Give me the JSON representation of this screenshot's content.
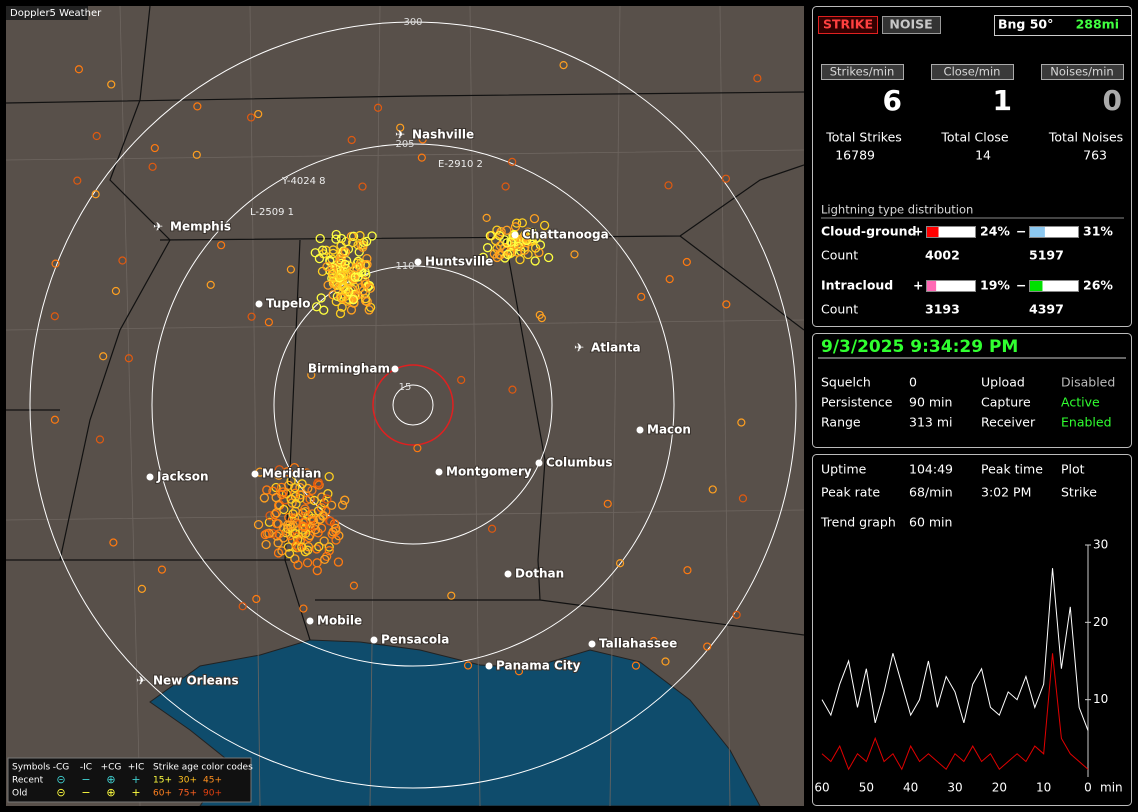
{
  "app_title": "Doppler5 Weather",
  "map": {
    "range_rings": [
      300,
      205,
      110,
      15
    ],
    "cities": [
      "Nashville",
      "Chattanooga",
      "Memphis",
      "Huntsville",
      "Tupelo",
      "Atlanta",
      "Birmingham",
      "Macon",
      "Meridian",
      "Jackson",
      "Montgomery",
      "Columbus",
      "Dothan",
      "Mobile",
      "Pensacola",
      "Tallahassee",
      "Panama City",
      "New Orleans"
    ],
    "stations": [
      "Y-4024 8",
      "L-2509 1",
      "E-2910 2"
    ],
    "legend": {
      "symbols_label": "Symbols",
      "columns": [
        "-CG",
        "-IC",
        "+CG",
        "+IC"
      ],
      "age_label": "Strike age color codes",
      "rows": [
        {
          "label": "Recent",
          "ages": [
            "15+",
            "30+",
            "45+"
          ]
        },
        {
          "label": "Old",
          "ages": [
            "60+",
            "75+",
            "90+"
          ]
        }
      ]
    }
  },
  "status": {
    "strike_button": "STRIKE",
    "noise_button": "NOISE",
    "bearing": "Bng 50°",
    "distance": "288mi"
  },
  "rates": [
    {
      "label": "Strikes/min",
      "value": 6
    },
    {
      "label": "Close/min",
      "value": 1
    },
    {
      "label": "Noises/min",
      "value": 0
    }
  ],
  "totals": [
    {
      "label": "Total Strikes",
      "value": 16789
    },
    {
      "label": "Total Close",
      "value": 14
    },
    {
      "label": "Total Noises",
      "value": 763
    }
  ],
  "distribution": {
    "title": "Lightning type distribution",
    "count_label": "Count",
    "rows": [
      {
        "label": "Cloud-ground",
        "pos": {
          "sign": "+",
          "percent": {
            "value": 24,
            "label": "24%"
          },
          "count": 4002,
          "color": "#ff0000"
        },
        "neg": {
          "sign": "−",
          "percent": {
            "value": 31,
            "label": "31%"
          },
          "count": 5197,
          "color": "#8cc8f0"
        }
      },
      {
        "label": "Intracloud",
        "pos": {
          "sign": "+",
          "percent": {
            "value": 19,
            "label": "19%"
          },
          "count": 3193,
          "color": "#ff69b4"
        },
        "neg": {
          "sign": "−",
          "percent": {
            "value": 26,
            "label": "26%"
          },
          "count": 4397,
          "color": "#00e000"
        }
      }
    ]
  },
  "clock": "9/3/2025 9:34:29 PM",
  "settings": [
    [
      "Squelch",
      "0",
      "Upload",
      "Disabled"
    ],
    [
      "Persistence",
      "90 min",
      "Capture",
      "Active"
    ],
    [
      "Range",
      "313 mi",
      "Receiver",
      "Enabled"
    ]
  ],
  "stats": [
    [
      "Uptime",
      "104:49",
      "Peak time",
      "Plot"
    ],
    [
      "Peak rate",
      "68/min",
      "3:02 PM",
      "Strike"
    ],
    [
      "Trend graph",
      "60 min"
    ]
  ],
  "chart_data": {
    "type": "line",
    "xlabel": "min",
    "x": [
      60,
      58,
      56,
      54,
      52,
      50,
      48,
      46,
      44,
      42,
      40,
      38,
      36,
      34,
      32,
      30,
      28,
      26,
      24,
      22,
      20,
      18,
      16,
      14,
      12,
      10,
      8,
      6,
      4,
      2,
      0
    ],
    "series": [
      {
        "color": "#ffffff",
        "values": [
          10,
          8,
          12,
          15,
          9,
          14,
          7,
          11,
          16,
          12,
          8,
          10,
          15,
          9,
          13,
          11,
          7,
          12,
          14,
          9,
          8,
          11,
          10,
          13,
          9,
          12,
          27,
          14,
          22,
          9,
          6
        ]
      },
      {
        "color": "#e00000",
        "values": [
          3,
          2,
          4,
          1,
          3,
          2,
          5,
          2,
          3,
          1,
          4,
          2,
          3,
          2,
          1,
          3,
          2,
          4,
          2,
          3,
          1,
          2,
          3,
          2,
          4,
          3,
          16,
          5,
          3,
          2,
          1
        ]
      }
    ],
    "xlim": [
      60,
      0
    ],
    "ylim": [
      0,
      30
    ],
    "xticks": [
      60,
      50,
      40,
      30,
      20,
      10,
      0
    ],
    "yticks": [
      10,
      20,
      30
    ]
  }
}
